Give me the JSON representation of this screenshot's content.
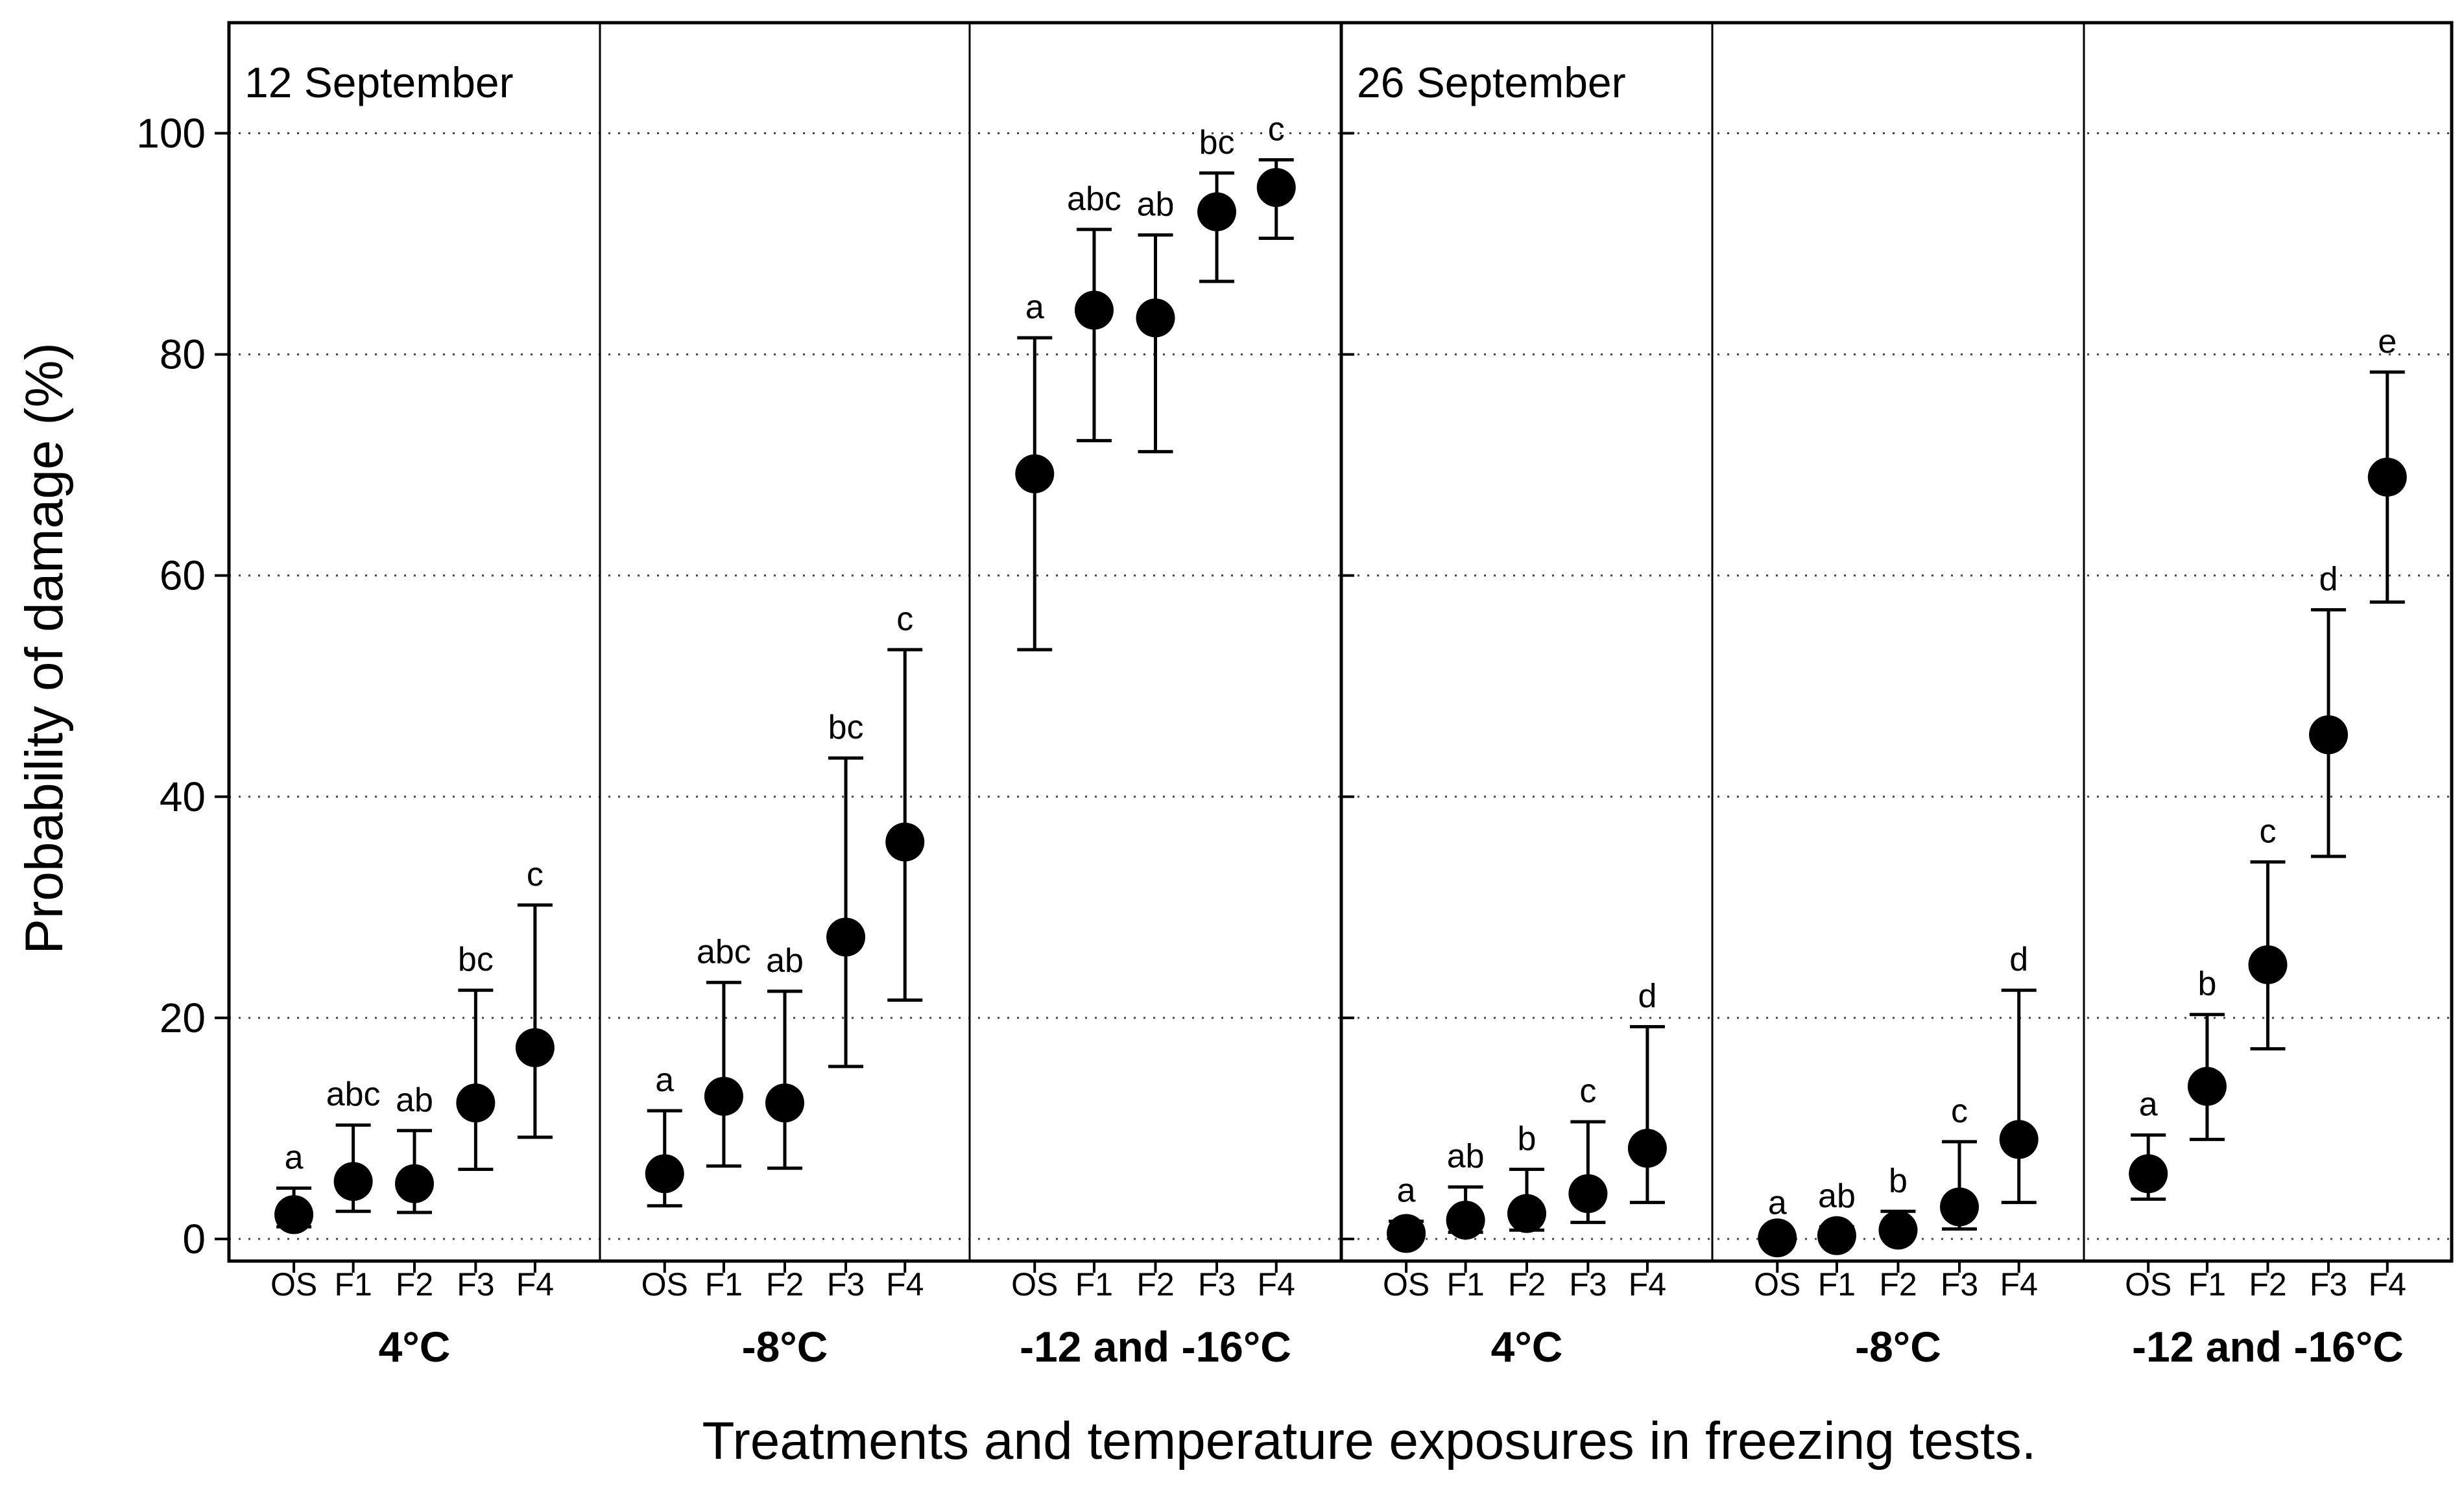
{
  "chart_data": {
    "type": "scatter",
    "ylabel": "Probability of damage (%)",
    "xlabel": "Treatments and temperature exposures in freezing tests.",
    "ylim": [
      -2,
      110
    ],
    "yticks": [
      0,
      20,
      40,
      60,
      80,
      100
    ],
    "grid": "horizontal dotted",
    "dates": [
      {
        "label": "12 September",
        "panels": [
          0,
          1,
          2
        ]
      },
      {
        "label": "26 September",
        "panels": [
          3,
          4,
          5
        ]
      }
    ],
    "panels": [
      {
        "date": "12 September",
        "temperature": "4°C",
        "categories": [
          "OS",
          "F1",
          "F2",
          "F3",
          "F4"
        ],
        "values": [
          2.2,
          5.2,
          5.0,
          12.3,
          17.3
        ],
        "lower": [
          1.1,
          2.5,
          2.4,
          6.3,
          9.2
        ],
        "upper": [
          4.6,
          10.3,
          9.8,
          22.5,
          30.2
        ],
        "letters": [
          "a",
          "abc",
          "ab",
          "bc",
          "c"
        ]
      },
      {
        "date": "12 September",
        "temperature": "-8°C",
        "categories": [
          "OS",
          "F1",
          "F2",
          "F3",
          "F4"
        ],
        "values": [
          5.9,
          12.9,
          12.3,
          27.3,
          35.9
        ],
        "lower": [
          3.0,
          6.6,
          6.4,
          15.6,
          21.6
        ],
        "upper": [
          11.6,
          23.2,
          22.4,
          43.5,
          53.3
        ],
        "letters": [
          "a",
          "abc",
          "ab",
          "bc",
          "c"
        ]
      },
      {
        "date": "12 September",
        "temperature": "-12 and -16°C",
        "categories": [
          "OS",
          "F1",
          "F2",
          "F3",
          "F4"
        ],
        "values": [
          69.2,
          84.0,
          83.3,
          92.9,
          95.1
        ],
        "lower": [
          53.3,
          72.2,
          71.2,
          86.6,
          90.5
        ],
        "upper": [
          81.5,
          91.3,
          90.8,
          96.4,
          97.6
        ],
        "letters": [
          "a",
          "abc",
          "ab",
          "bc",
          "c"
        ]
      },
      {
        "date": "26 September",
        "temperature": "4°C",
        "categories": [
          "OS",
          "F1",
          "F2",
          "F3",
          "F4"
        ],
        "values": [
          0.5,
          1.7,
          2.3,
          4.1,
          8.2
        ],
        "lower": [
          0.1,
          0.6,
          0.8,
          1.5,
          3.3
        ],
        "upper": [
          1.6,
          4.7,
          6.3,
          10.6,
          19.2
        ],
        "letters": [
          "a",
          "ab",
          "b",
          "c",
          "d"
        ]
      },
      {
        "date": "26 September",
        "temperature": "-8°C",
        "categories": [
          "OS",
          "F1",
          "F2",
          "F3",
          "F4"
        ],
        "values": [
          0.1,
          0.3,
          0.8,
          2.9,
          9.0
        ],
        "lower": [
          0.0,
          0.1,
          0.2,
          0.9,
          3.3
        ],
        "upper": [
          0.5,
          1.1,
          2.5,
          8.8,
          22.5
        ],
        "letters": [
          "a",
          "ab",
          "b",
          "c",
          "d"
        ]
      },
      {
        "date": "26 September",
        "temperature": "-12 and -16°C",
        "categories": [
          "OS",
          "F1",
          "F2",
          "F3",
          "F4"
        ],
        "values": [
          5.9,
          13.8,
          24.8,
          45.6,
          68.9
        ],
        "lower": [
          3.6,
          9.0,
          17.2,
          34.6,
          57.6
        ],
        "upper": [
          9.4,
          20.3,
          34.1,
          56.9,
          78.4
        ],
        "letters": [
          "a",
          "b",
          "c",
          "d",
          "e"
        ]
      }
    ]
  }
}
